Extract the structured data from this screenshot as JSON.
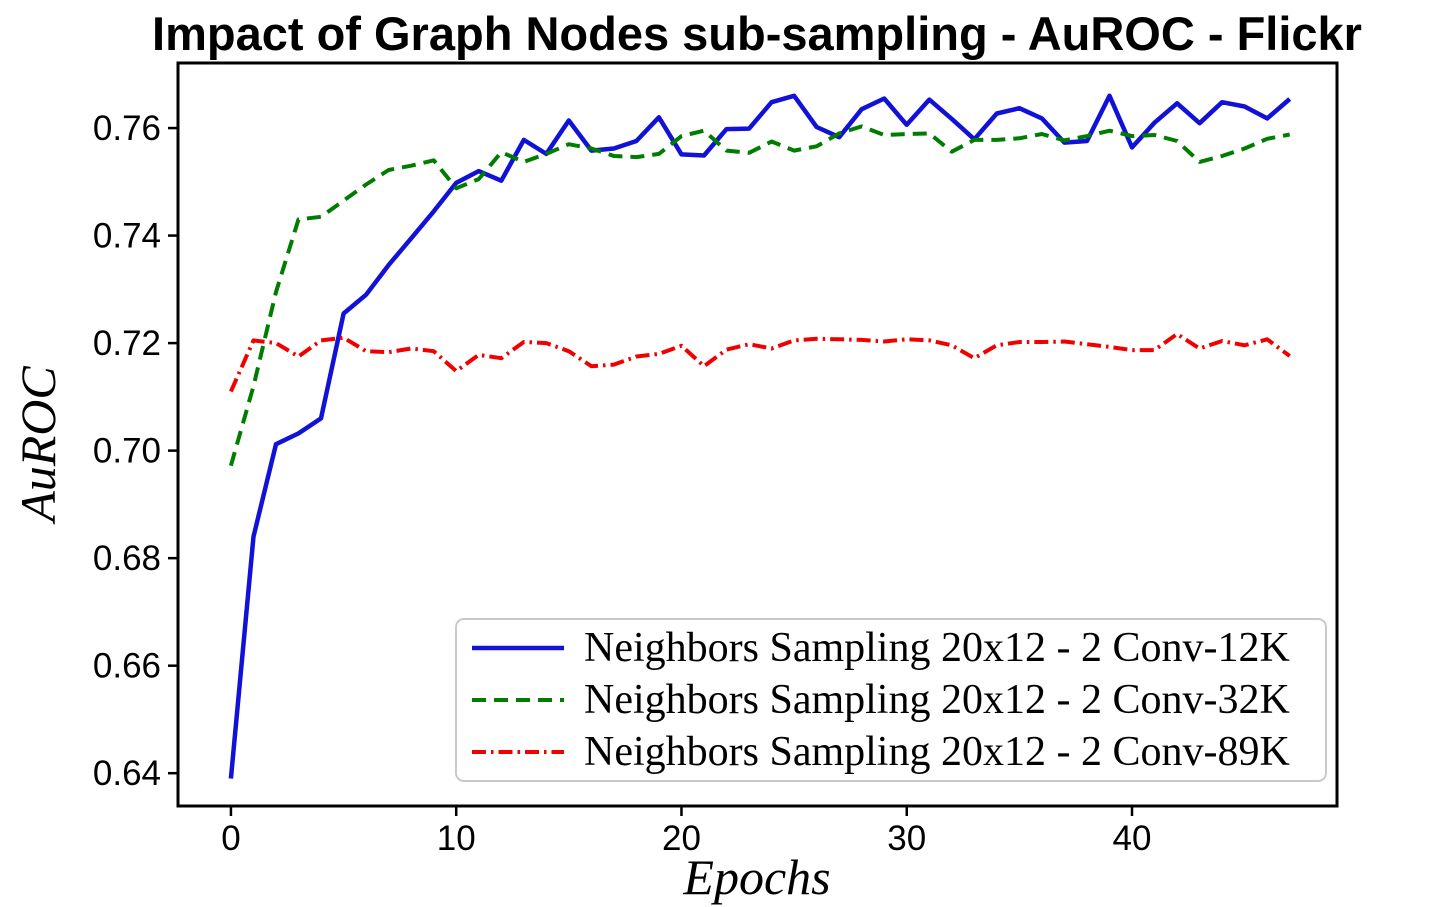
{
  "title": "Impact of Graph Nodes sub-sampling - AuROC - Flickr",
  "chart_data": {
    "type": "line",
    "title": "Impact of Graph Nodes sub-sampling - AuROC - Flickr",
    "xlabel": "Epochs",
    "ylabel": "AuROC",
    "xlim": [
      -2.35,
      49.1
    ],
    "ylim": [
      0.6339,
      0.7721
    ],
    "grid": false,
    "legend_position": "lower right",
    "x_tick_values": [
      0,
      10,
      20,
      30,
      40
    ],
    "x_tick_labels": [
      "0",
      "10",
      "20",
      "30",
      "40"
    ],
    "y_tick_values": [
      0.64,
      0.66,
      0.68,
      0.7,
      0.72,
      0.74,
      0.76
    ],
    "y_tick_labels": [
      "0.64",
      "0.66",
      "0.68",
      "0.70",
      "0.72",
      "0.74",
      "0.76"
    ],
    "x": [
      0,
      1,
      2,
      3,
      4,
      5,
      6,
      7,
      8,
      9,
      10,
      11,
      12,
      13,
      14,
      15,
      16,
      17,
      18,
      19,
      20,
      21,
      22,
      23,
      24,
      25,
      26,
      27,
      28,
      29,
      30,
      31,
      32,
      33,
      34,
      35,
      36,
      37,
      38,
      39,
      40,
      41,
      42,
      43,
      44,
      45,
      46,
      47
    ],
    "series": [
      {
        "id": "conv-12k",
        "name": "Neighbors Sampling 20x12 - 2 Conv-12K",
        "color": "#1111d8",
        "style": "solid",
        "line_width": 4.5,
        "values": [
          0.639,
          0.684,
          0.7012,
          0.7032,
          0.706,
          0.7255,
          0.729,
          0.7345,
          0.7395,
          0.7445,
          0.7498,
          0.752,
          0.7502,
          0.7578,
          0.7552,
          0.7614,
          0.7558,
          0.7562,
          0.7576,
          0.762,
          0.7551,
          0.7549,
          0.7598,
          0.7599,
          0.7648,
          0.766,
          0.7602,
          0.7583,
          0.7635,
          0.7655,
          0.7606,
          0.7653,
          0.7617,
          0.7579,
          0.7627,
          0.7637,
          0.7618,
          0.7573,
          0.7576,
          0.766,
          0.7564,
          0.761,
          0.7646,
          0.7609,
          0.7648,
          0.764,
          0.7618,
          0.7654
        ]
      },
      {
        "id": "conv-32k",
        "name": "Neighbors Sampling 20x12 - 2 Conv-32K",
        "color": "#007d00",
        "style": "dashed",
        "line_width": 4,
        "values": [
          0.6972,
          0.712,
          0.7295,
          0.743,
          0.7435,
          0.7465,
          0.7495,
          0.7522,
          0.753,
          0.754,
          0.7488,
          0.7505,
          0.7555,
          0.7537,
          0.7552,
          0.757,
          0.7562,
          0.7548,
          0.7546,
          0.7552,
          0.7585,
          0.7595,
          0.7558,
          0.7554,
          0.7575,
          0.7558,
          0.7566,
          0.759,
          0.7603,
          0.7587,
          0.7589,
          0.759,
          0.7556,
          0.7578,
          0.7578,
          0.7581,
          0.7589,
          0.7577,
          0.7585,
          0.7595,
          0.7585,
          0.7587,
          0.7576,
          0.7537,
          0.7548,
          0.7562,
          0.758,
          0.7588
        ]
      },
      {
        "id": "conv-89k",
        "name": "Neighbors Sampling 20x12 - 2 Conv-89K",
        "color": "#f20000",
        "style": "dashdot",
        "line_width": 4,
        "values": [
          0.711,
          0.7205,
          0.72,
          0.7175,
          0.7205,
          0.721,
          0.7185,
          0.7183,
          0.719,
          0.7185,
          0.7148,
          0.7178,
          0.7172,
          0.7202,
          0.72,
          0.7185,
          0.7157,
          0.716,
          0.7175,
          0.718,
          0.7195,
          0.7157,
          0.7188,
          0.7198,
          0.719,
          0.7205,
          0.7208,
          0.7207,
          0.7206,
          0.7203,
          0.7207,
          0.7205,
          0.7196,
          0.7172,
          0.7196,
          0.7202,
          0.7202,
          0.7203,
          0.7198,
          0.7193,
          0.7187,
          0.7187,
          0.7217,
          0.719,
          0.7204,
          0.7196,
          0.7207,
          0.7176
        ]
      }
    ]
  }
}
